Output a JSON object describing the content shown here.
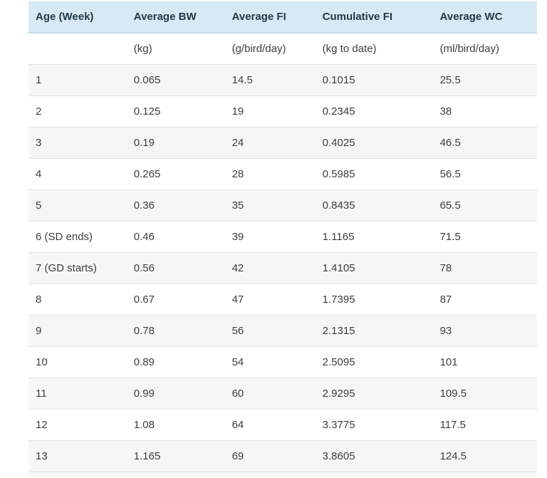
{
  "colors": {
    "header_bg": "#d7e9f4",
    "header_text": "#223a4a",
    "header_border": "#c2dcec",
    "row_shaded_bg": "#f7f6f6",
    "row_border": "#e4e2e2",
    "body_text": "#3d3d3d",
    "page_bg": "#ffffff"
  },
  "chart_data": {
    "type": "table",
    "columns": [
      {
        "label": "Age (Week)",
        "unit": ""
      },
      {
        "label": "Average BW",
        "unit": "(kg)"
      },
      {
        "label": "Average FI",
        "unit": "(g/bird/day)"
      },
      {
        "label": "Cumulative FI",
        "unit": "(kg to date)"
      },
      {
        "label": "Average WC",
        "unit": "(ml/bird/day)"
      }
    ],
    "rows": [
      {
        "shaded": true,
        "cells": [
          "1",
          "0.065",
          "14.5",
          "0.1015",
          "25.5"
        ]
      },
      {
        "shaded": false,
        "cells": [
          "2",
          "0.125",
          "19",
          "0.2345",
          "38"
        ]
      },
      {
        "shaded": true,
        "cells": [
          "3",
          "0.19",
          "24",
          "0.4025",
          "46.5"
        ]
      },
      {
        "shaded": false,
        "cells": [
          "4",
          "0.265",
          "28",
          "0.5985",
          "56.5"
        ]
      },
      {
        "shaded": true,
        "cells": [
          "5",
          "0.36",
          "35",
          "0.8435",
          "65.5"
        ]
      },
      {
        "shaded": false,
        "cells": [
          "6 (SD ends)",
          "0.46",
          "39",
          "1.1165",
          "71.5"
        ]
      },
      {
        "shaded": true,
        "cells": [
          "7 (GD starts)",
          "0.56",
          "42",
          "1.4105",
          "78"
        ]
      },
      {
        "shaded": false,
        "cells": [
          "8",
          "0.67",
          "47",
          "1.7395",
          "87"
        ]
      },
      {
        "shaded": true,
        "cells": [
          "9",
          "0.78",
          "56",
          "2.1315",
          "93"
        ]
      },
      {
        "shaded": false,
        "cells": [
          "10",
          "0.89",
          "54",
          "2.5095",
          "101"
        ]
      },
      {
        "shaded": true,
        "cells": [
          "11",
          "0.99",
          "60",
          "2.9295",
          "109.5"
        ]
      },
      {
        "shaded": false,
        "cells": [
          "12",
          "1.08",
          "64",
          "3.3775",
          "117.5"
        ]
      },
      {
        "shaded": true,
        "cells": [
          "13",
          "1.165",
          "69",
          "3.8605",
          "124.5"
        ]
      }
    ]
  }
}
